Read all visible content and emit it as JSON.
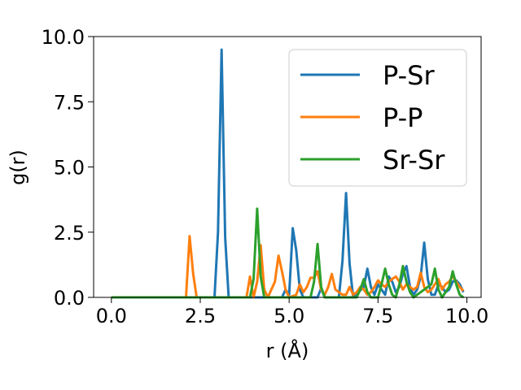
{
  "chart_data": {
    "type": "line",
    "xlabel": "r (Å)",
    "ylabel": "g(r)",
    "xlim": [
      -0.5,
      10.4
    ],
    "ylim": [
      0.0,
      10.0
    ],
    "xticks": [
      "0.0",
      "2.5",
      "5.0",
      "7.5",
      "10.0"
    ],
    "yticks": [
      "0.0",
      "2.5",
      "5.0",
      "7.5",
      "10.0"
    ],
    "grid": false,
    "legend_position": "upper right",
    "series": [
      {
        "name": "P-Sr",
        "color": "#1f77b4",
        "points": [
          [
            0.0,
            0
          ],
          [
            2.9,
            0
          ],
          [
            3.0,
            2.5
          ],
          [
            3.1,
            9.5
          ],
          [
            3.2,
            2.3
          ],
          [
            3.3,
            0
          ],
          [
            4.8,
            0
          ],
          [
            4.9,
            0.3
          ],
          [
            5.0,
            0.1
          ],
          [
            5.1,
            2.65
          ],
          [
            5.2,
            1.8
          ],
          [
            5.3,
            0.3
          ],
          [
            5.4,
            0
          ],
          [
            5.8,
            0
          ],
          [
            5.9,
            0.35
          ],
          [
            6.0,
            0
          ],
          [
            6.4,
            0
          ],
          [
            6.5,
            1.4
          ],
          [
            6.6,
            4.0
          ],
          [
            6.7,
            1.3
          ],
          [
            6.8,
            0
          ],
          [
            7.1,
            0.4
          ],
          [
            7.2,
            1.1
          ],
          [
            7.3,
            0.4
          ],
          [
            7.4,
            0.1
          ],
          [
            7.5,
            0.5
          ],
          [
            7.6,
            0.3
          ],
          [
            7.7,
            0.1
          ],
          [
            7.8,
            0.8
          ],
          [
            7.9,
            0.6
          ],
          [
            8.0,
            0.2
          ],
          [
            8.1,
            0.4
          ],
          [
            8.2,
            0.9
          ],
          [
            8.3,
            1.2
          ],
          [
            8.4,
            0.4
          ],
          [
            8.5,
            0.1
          ],
          [
            8.6,
            0.3
          ],
          [
            8.7,
            0.8
          ],
          [
            8.8,
            2.1
          ],
          [
            8.9,
            0.7
          ],
          [
            9.0,
            0.1
          ],
          [
            9.1,
            0.1
          ],
          [
            9.2,
            0.5
          ],
          [
            9.3,
            0.4
          ],
          [
            9.4,
            0.2
          ],
          [
            9.5,
            0.3
          ],
          [
            9.6,
            0.6
          ],
          [
            9.7,
            0.65
          ],
          [
            9.8,
            0.5
          ],
          [
            9.9,
            0.2
          ]
        ]
      },
      {
        "name": "P-P",
        "color": "#ff7f0e",
        "points": [
          [
            0.0,
            0
          ],
          [
            2.1,
            0
          ],
          [
            2.2,
            2.35
          ],
          [
            2.3,
            0.9
          ],
          [
            2.4,
            0
          ],
          [
            3.8,
            0
          ],
          [
            3.9,
            0.8
          ],
          [
            4.0,
            0
          ],
          [
            4.1,
            0.6
          ],
          [
            4.2,
            2.0
          ],
          [
            4.3,
            0.3
          ],
          [
            4.4,
            0
          ],
          [
            4.6,
            0.6
          ],
          [
            4.7,
            1.6
          ],
          [
            4.8,
            1.0
          ],
          [
            4.9,
            0.3
          ],
          [
            5.0,
            0
          ],
          [
            5.2,
            0.1
          ],
          [
            5.3,
            0.5
          ],
          [
            5.4,
            0.2
          ],
          [
            5.5,
            0.4
          ],
          [
            5.6,
            0.75
          ],
          [
            5.7,
            0.75
          ],
          [
            5.8,
            1.0
          ],
          [
            5.9,
            0.3
          ],
          [
            6.0,
            0.1
          ],
          [
            6.1,
            0.4
          ],
          [
            6.2,
            0.9
          ],
          [
            6.3,
            0.3
          ],
          [
            6.4,
            0.2
          ],
          [
            6.5,
            0.1
          ],
          [
            6.6,
            0.1
          ],
          [
            6.7,
            0.4
          ],
          [
            6.8,
            0.1
          ],
          [
            6.9,
            0.2
          ],
          [
            7.0,
            0.4
          ],
          [
            7.1,
            0.3
          ],
          [
            7.2,
            0.1
          ],
          [
            7.3,
            0.2
          ],
          [
            7.4,
            0.4
          ],
          [
            7.5,
            0.65
          ],
          [
            7.6,
            0.5
          ],
          [
            7.7,
            0.4
          ],
          [
            7.8,
            0.6
          ],
          [
            7.9,
            0.7
          ],
          [
            8.0,
            0.8
          ],
          [
            8.1,
            0.6
          ],
          [
            8.2,
            0.3
          ],
          [
            8.3,
            0.5
          ],
          [
            8.4,
            0.4
          ],
          [
            8.5,
            0.3
          ],
          [
            8.6,
            0.4
          ],
          [
            8.7,
            0.95
          ],
          [
            8.8,
            0.4
          ],
          [
            8.9,
            0.2
          ],
          [
            9.0,
            0.3
          ],
          [
            9.1,
            0.5
          ],
          [
            9.2,
            0.7
          ],
          [
            9.3,
            0.3
          ],
          [
            9.4,
            0.5
          ],
          [
            9.5,
            0.6
          ],
          [
            9.6,
            0.8
          ],
          [
            9.7,
            0.6
          ],
          [
            9.8,
            0.4
          ],
          [
            9.9,
            0.25
          ]
        ]
      },
      {
        "name": "Sr-Sr",
        "color": "#2ca02c",
        "points": [
          [
            0.0,
            0
          ],
          [
            3.9,
            0
          ],
          [
            4.0,
            0.7
          ],
          [
            4.1,
            3.4
          ],
          [
            4.2,
            0.8
          ],
          [
            4.3,
            0
          ],
          [
            5.6,
            0
          ],
          [
            5.7,
            0.6
          ],
          [
            5.8,
            2.05
          ],
          [
            5.9,
            0.4
          ],
          [
            6.0,
            0
          ],
          [
            6.9,
            0
          ],
          [
            7.0,
            0.3
          ],
          [
            7.1,
            0.7
          ],
          [
            7.2,
            0.2
          ],
          [
            7.3,
            0
          ],
          [
            7.5,
            0
          ],
          [
            7.6,
            0.5
          ],
          [
            7.7,
            1.1
          ],
          [
            7.8,
            0.5
          ],
          [
            7.9,
            0.1
          ],
          [
            8.0,
            0
          ],
          [
            8.1,
            0.5
          ],
          [
            8.2,
            1.2
          ],
          [
            8.3,
            0.6
          ],
          [
            8.4,
            0.2
          ],
          [
            8.5,
            0
          ],
          [
            9.0,
            0.5
          ],
          [
            9.1,
            1.1
          ],
          [
            9.2,
            0.3
          ],
          [
            9.3,
            0
          ],
          [
            9.5,
            0.4
          ],
          [
            9.6,
            1.0
          ],
          [
            9.7,
            0.5
          ],
          [
            9.8,
            0.1
          ],
          [
            9.9,
            0
          ]
        ]
      }
    ]
  }
}
